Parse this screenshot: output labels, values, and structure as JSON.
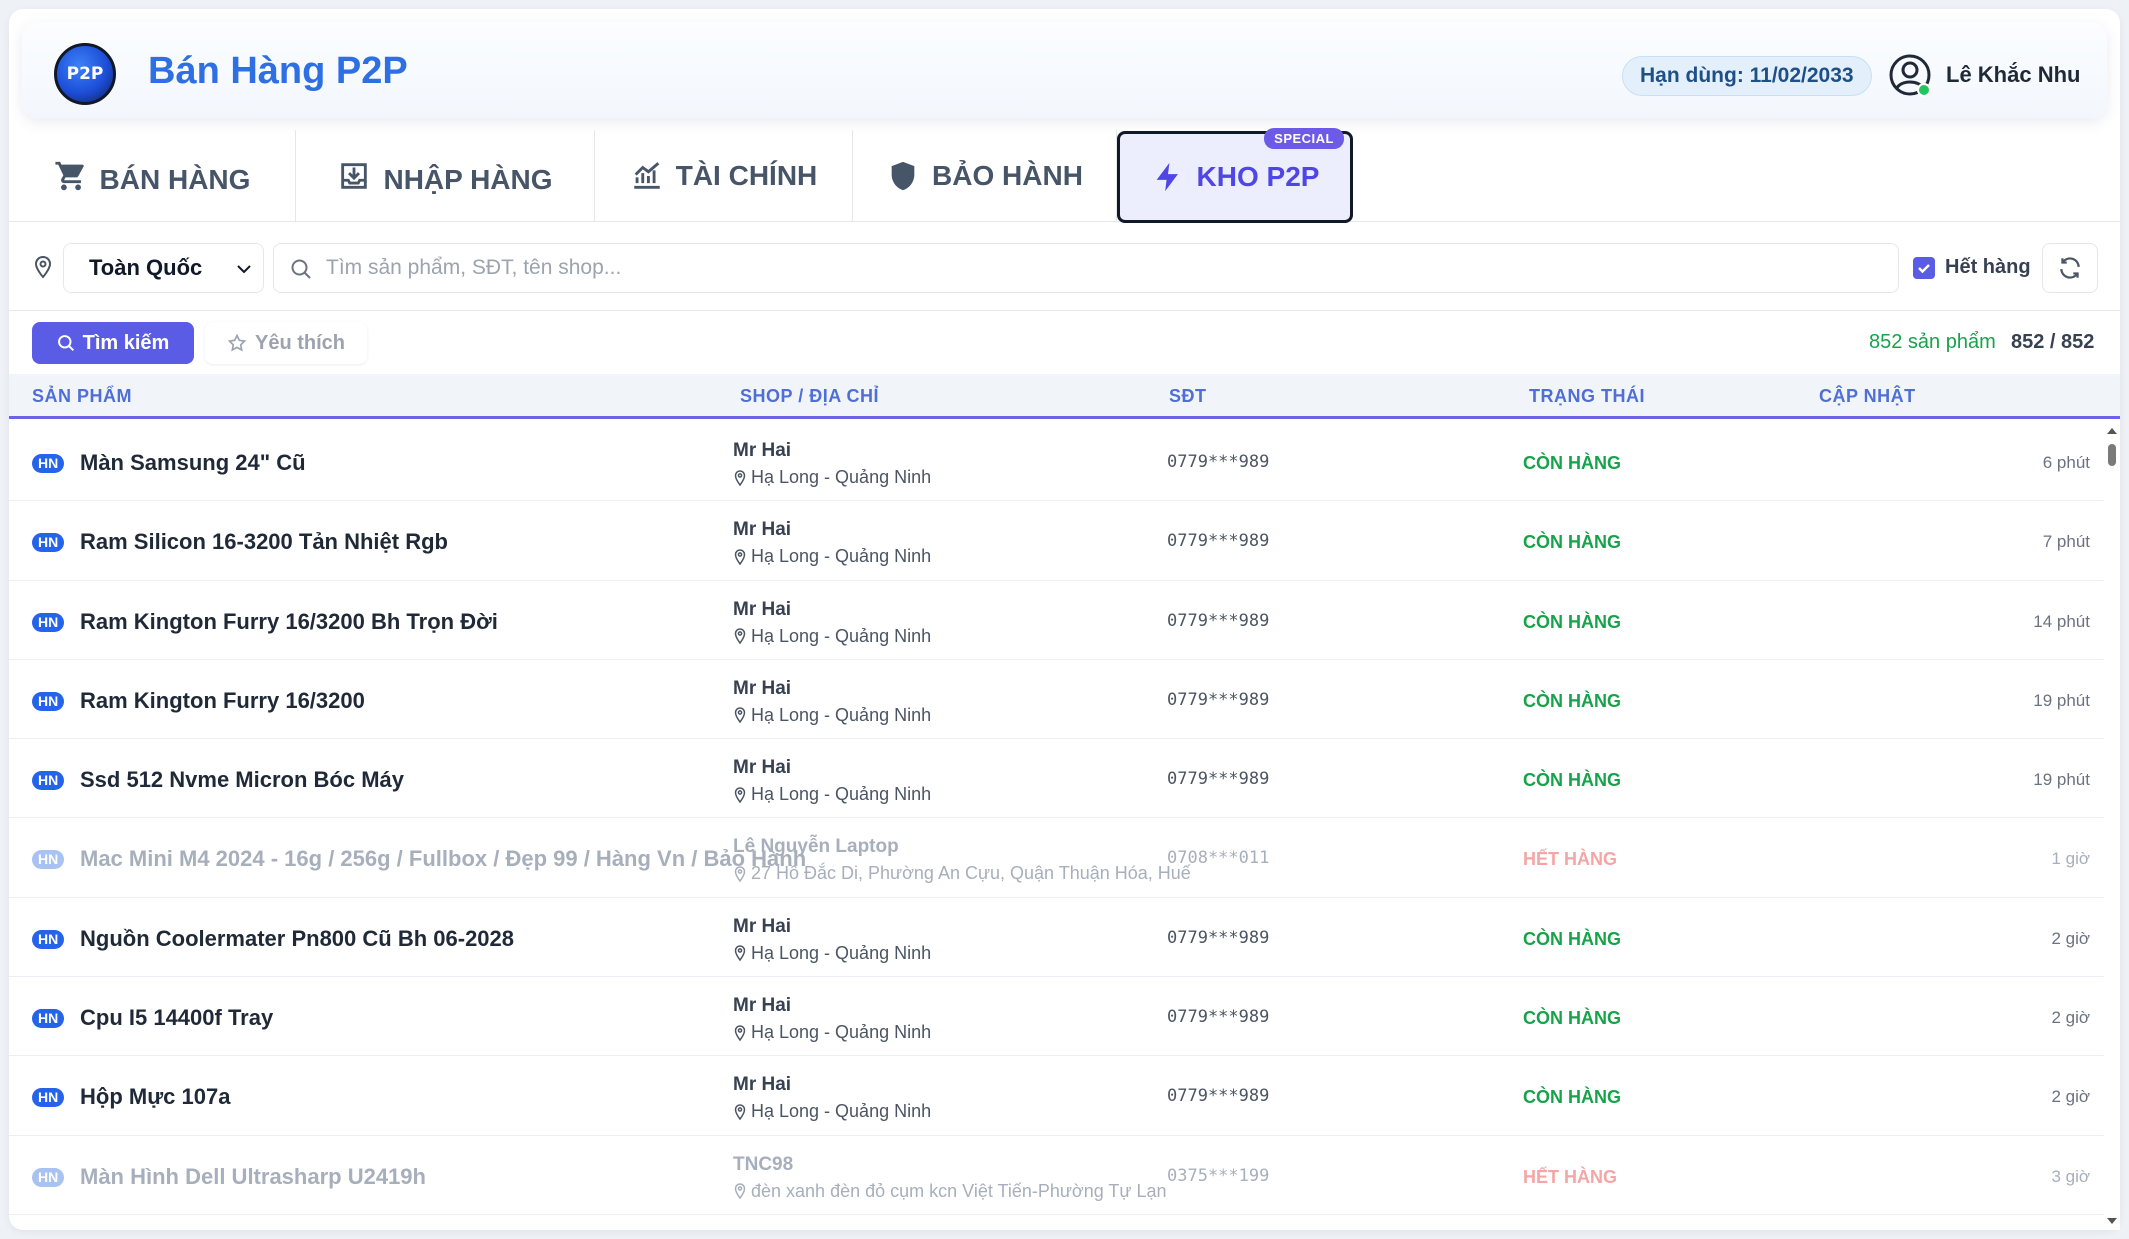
{
  "header": {
    "logo_text": "P2P",
    "title": "Bán Hàng P2P",
    "expiry": "Hạn dùng: 11/02/2033",
    "user_name": "Lê Khắc Nhu"
  },
  "tabs": [
    {
      "label": "BÁN HÀNG",
      "icon": "cart-icon"
    },
    {
      "label": "NHẬP HÀNG",
      "icon": "inbox-download-icon"
    },
    {
      "label": "TÀI CHÍNH",
      "icon": "chart-line-icon"
    },
    {
      "label": "BẢO HÀNH",
      "icon": "shield-icon"
    },
    {
      "label": "KHO P2P",
      "icon": "lightning-icon",
      "badge": "SPECIAL",
      "active": true
    }
  ],
  "filters": {
    "region": "Toàn Quốc",
    "search_placeholder": "Tìm sản phẩm, SĐT, tên shop...",
    "search_value": "",
    "out_of_stock_label": "Hết hàng",
    "out_of_stock_checked": true
  },
  "actions": {
    "search_label": "Tìm kiếm",
    "favorite_label": "Yêu thích",
    "product_count": "852 sản phẩm",
    "page_count": "852 / 852"
  },
  "table": {
    "headers": [
      "SẢN PHẨM",
      "SHOP / ĐỊA CHỈ",
      "SĐT",
      "TRẠNG THÁI",
      "CẬP NHẬT"
    ],
    "rows": [
      {
        "region": "HN",
        "product": "Màn Samsung 24\" Cũ",
        "shop": "Mr Hai",
        "address": "Hạ Long - Quảng Ninh",
        "phone": "0779***989",
        "status": "CÒN HÀNG",
        "in_stock": true,
        "updated": "6 phút"
      },
      {
        "region": "HN",
        "product": "Ram Silicon 16-3200 Tản Nhiệt Rgb",
        "shop": "Mr Hai",
        "address": "Hạ Long - Quảng Ninh",
        "phone": "0779***989",
        "status": "CÒN HÀNG",
        "in_stock": true,
        "updated": "7 phút"
      },
      {
        "region": "HN",
        "product": "Ram Kington Furry 16/3200 Bh Trọn Đời",
        "shop": "Mr Hai",
        "address": "Hạ Long - Quảng Ninh",
        "phone": "0779***989",
        "status": "CÒN HÀNG",
        "in_stock": true,
        "updated": "14 phút"
      },
      {
        "region": "HN",
        "product": "Ram Kington Furry 16/3200",
        "shop": "Mr Hai",
        "address": "Hạ Long - Quảng Ninh",
        "phone": "0779***989",
        "status": "CÒN HÀNG",
        "in_stock": true,
        "updated": "19 phút"
      },
      {
        "region": "HN",
        "product": "Ssd 512 Nvme Micron Bóc Máy",
        "shop": "Mr Hai",
        "address": "Hạ Long - Quảng Ninh",
        "phone": "0779***989",
        "status": "CÒN HÀNG",
        "in_stock": true,
        "updated": "19 phút"
      },
      {
        "region": "HN",
        "product": "Mac Mini M4 2024 - 16g / 256g / Fullbox / Đẹp 99 / Hàng Vn / Bảo Hành",
        "shop": "Lê Nguyễn Laptop",
        "address": "27 Hồ Đắc Di, Phường An Cựu, Quận Thuận Hóa, Huế",
        "phone": "0708***011",
        "status": "HẾT HÀNG",
        "in_stock": false,
        "updated": "1 giờ"
      },
      {
        "region": "HN",
        "product": "Nguồn Coolermater Pn800 Cũ Bh 06-2028",
        "shop": "Mr Hai",
        "address": "Hạ Long - Quảng Ninh",
        "phone": "0779***989",
        "status": "CÒN HÀNG",
        "in_stock": true,
        "updated": "2 giờ"
      },
      {
        "region": "HN",
        "product": "Cpu I5 14400f Tray",
        "shop": "Mr Hai",
        "address": "Hạ Long - Quảng Ninh",
        "phone": "0779***989",
        "status": "CÒN HÀNG",
        "in_stock": true,
        "updated": "2 giờ"
      },
      {
        "region": "HN",
        "product": "Hộp Mực 107a",
        "shop": "Mr Hai",
        "address": "Hạ Long - Quảng Ninh",
        "phone": "0779***989",
        "status": "CÒN HÀNG",
        "in_stock": true,
        "updated": "2 giờ"
      },
      {
        "region": "HN",
        "product": "Màn Hình Dell Ultrasharp U2419h",
        "shop": "TNC98",
        "address": "đèn xanh đèn đỏ cụm kcn Việt Tiến-Phường Tự Lạn",
        "phone": "0375***199",
        "status": "HẾT HÀNG",
        "in_stock": false,
        "updated": "3 giờ"
      }
    ]
  },
  "colors": {
    "brand": "#2f6fe4",
    "accent": "#5b5ce6",
    "in_stock": "#16a34a",
    "out_of_stock": "#f07272"
  }
}
